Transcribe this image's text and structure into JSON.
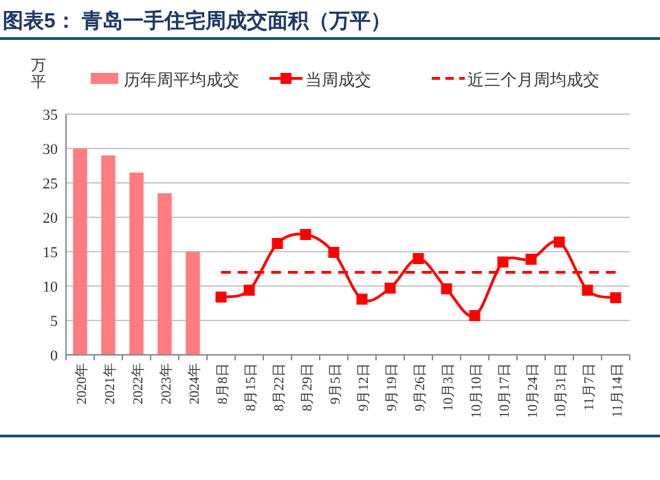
{
  "chart_data": {
    "type": "bar",
    "title": "图表5： 青岛一手住宅周成交面积（万平）",
    "ylabel": "万平",
    "categories": [
      "2020年",
      "2021年",
      "2022年",
      "2023年",
      "2024年",
      "8月8日",
      "8月15日",
      "8月22日",
      "8月29日",
      "9月5日",
      "9月12日",
      "9月19日",
      "9月26日",
      "10月3日",
      "10月10日",
      "10月17日",
      "10月24日",
      "10月31日",
      "11月7日",
      "11月14日"
    ],
    "series": [
      {
        "name": "历年周平均成交",
        "color": "#ff7c80",
        "values": [
          30,
          29,
          26.5,
          23.5,
          15,
          null,
          null,
          null,
          null,
          null,
          null,
          null,
          null,
          null,
          null,
          null,
          null,
          null,
          null,
          null
        ]
      },
      {
        "name": "当周成交",
        "type": "line",
        "color": "#ff0000",
        "marker": "square",
        "line_style": "solid",
        "values": [
          null,
          null,
          null,
          null,
          null,
          8.4,
          9.4,
          16.2,
          17.5,
          14.9,
          8.1,
          9.7,
          14.0,
          9.6,
          5.7,
          13.5,
          13.9,
          16.4,
          9.4,
          8.3
        ]
      },
      {
        "name": "近三个月周均成交",
        "type": "line",
        "color": "#ff0000",
        "marker": "none",
        "line_style": "dashed",
        "values": [
          null,
          null,
          null,
          null,
          null,
          12,
          12,
          12,
          12,
          12,
          12,
          12,
          12,
          12,
          12,
          12,
          12,
          12,
          12,
          12
        ]
      }
    ],
    "ylim": [
      0,
      35
    ],
    "yticks": [
      0,
      5,
      10,
      15,
      20,
      25,
      30,
      35
    ],
    "grid": "y",
    "legend": "top"
  }
}
